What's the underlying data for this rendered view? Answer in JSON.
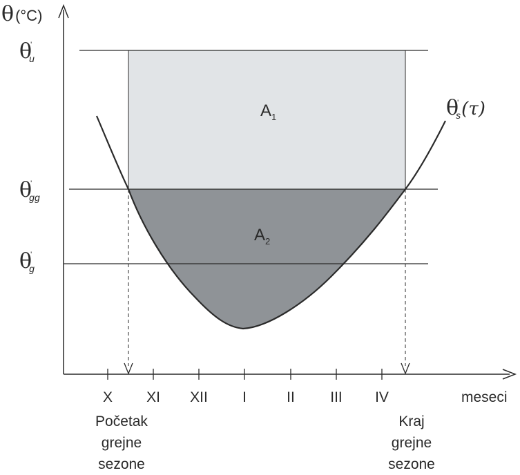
{
  "diagram": {
    "y_axis_label": {
      "symbol": "θ",
      "unit": "(°C)"
    },
    "x_axis_label": "meseci",
    "months": [
      "X",
      "XI",
      "XII",
      "I",
      "II",
      "III",
      "IV"
    ],
    "levels": {
      "theta_u": {
        "symbol": "θ",
        "prime": "'",
        "sub": "u"
      },
      "theta_gg": {
        "symbol": "θ",
        "prime": "'",
        "sub": "gg"
      },
      "theta_g": {
        "symbol": "θ",
        "prime": "'",
        "sub": "g"
      }
    },
    "curve_label": {
      "symbol": "θ",
      "prime": "'",
      "sub": "s",
      "arg": "(τ)"
    },
    "areas": {
      "a1": {
        "letter": "A",
        "sub": "1"
      },
      "a2": {
        "letter": "A",
        "sub": "2"
      }
    },
    "start_note": [
      "Početak",
      "grejne",
      "sezone"
    ],
    "end_note": [
      "Kraj",
      "grejne",
      "sezone"
    ],
    "colors": {
      "area_a1": "#e1e4e7",
      "area_a2": "#8f9397",
      "ink": "#2a2a2a"
    }
  }
}
